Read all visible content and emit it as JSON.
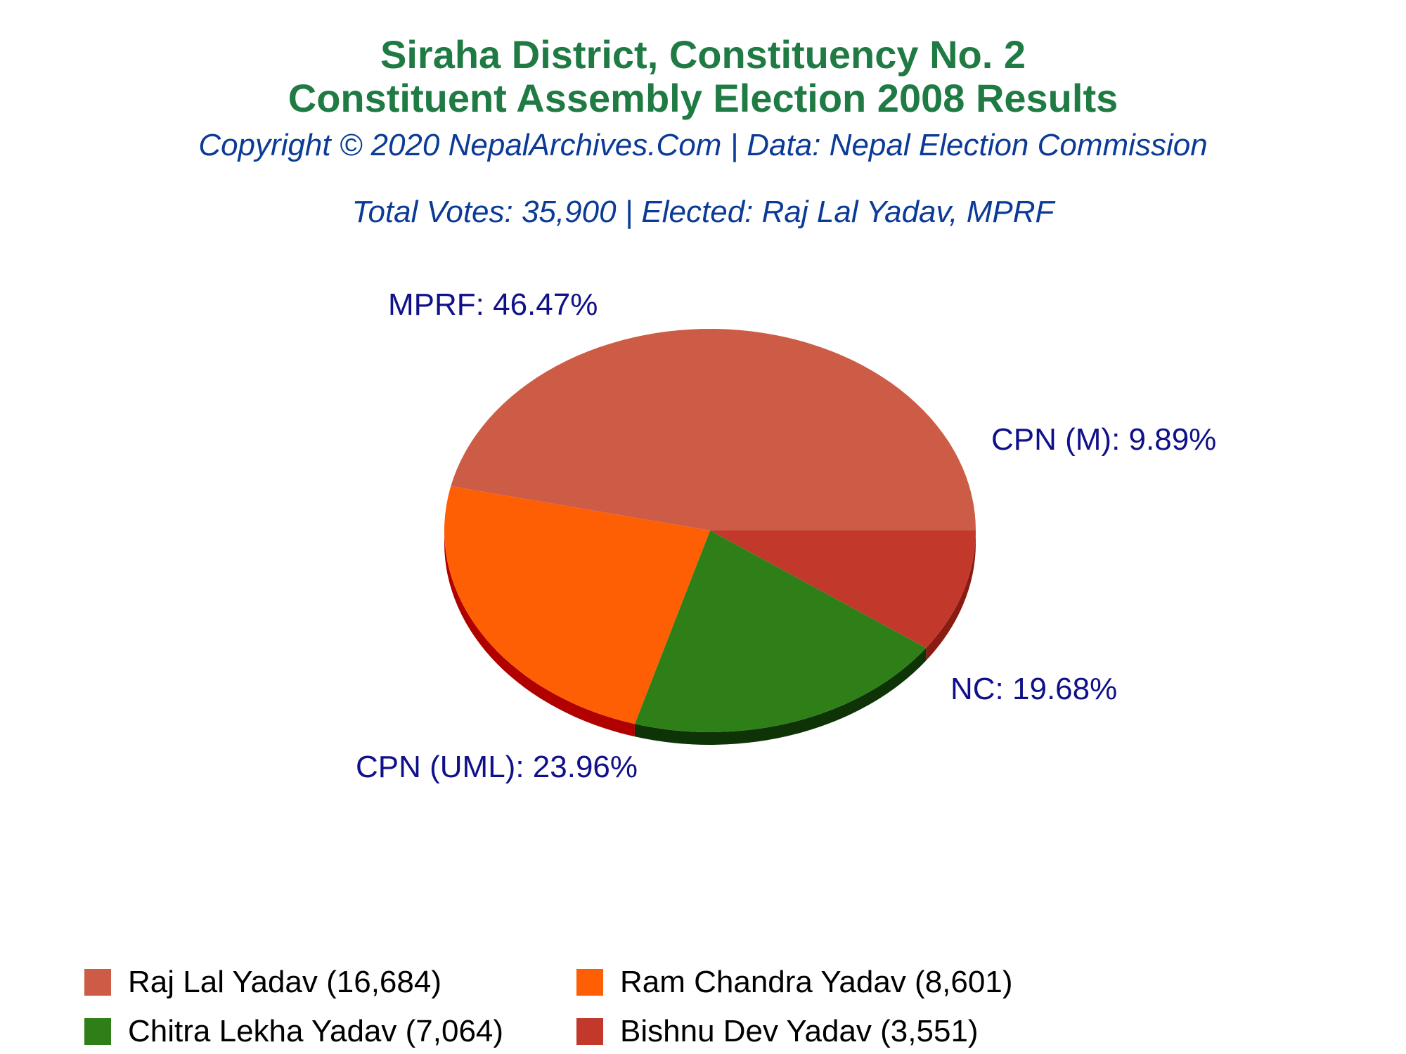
{
  "title_line1": "Siraha District, Constituency No. 2",
  "title_line2": "Constituent Assembly Election 2008 Results",
  "copyright": "Copyright © 2020 NepalArchives.Com | Data: Nepal Election Commission",
  "summary": "Total Votes: 35,900 | Elected: Raj Lal Yadav, MPRF",
  "chart_data": {
    "type": "pie",
    "title": "Siraha District, Constituency No. 2 Constituent Assembly Election 2008 Results",
    "slices": [
      {
        "candidate": "Raj Lal Yadav",
        "party": "MPRF",
        "votes": 16684,
        "percent": 46.47,
        "label": "MPRF: 46.47%",
        "legend": "Raj Lal Yadav (16,684)",
        "color": "#cd5c47",
        "side_color": "#a23020"
      },
      {
        "candidate": "Ram Chandra Yadav",
        "party": "CPN (UML)",
        "votes": 8601,
        "percent": 23.96,
        "label": "CPN (UML): 23.96%",
        "legend": "Ram Chandra Yadav (8,601)",
        "color": "#ff5f04",
        "side_color": "#b00000"
      },
      {
        "candidate": "Chitra Lekha Yadav",
        "party": "NC",
        "votes": 7064,
        "percent": 19.68,
        "label": "NC: 19.68%",
        "legend": "Chitra Lekha Yadav (7,064)",
        "color": "#2f7f18",
        "side_color": "#0d3306"
      },
      {
        "candidate": "Bishnu Dev Yadav",
        "party": "CPN (M)",
        "votes": 3551,
        "percent": 9.89,
        "label": "CPN (M): 9.89%",
        "legend": "Bishnu Dev Yadav (3,551)",
        "color": "#c2392b",
        "side_color": "#8a1b12"
      }
    ],
    "legend_order": [
      0,
      1,
      2,
      3
    ],
    "label_color": "#10108a"
  }
}
